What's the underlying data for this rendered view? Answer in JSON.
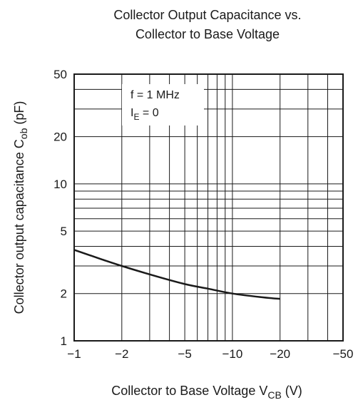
{
  "chart_data": {
    "type": "line",
    "title_lines": [
      "Collector Output Capacitance vs.",
      "Collector to Base Voltage"
    ],
    "xlabel": {
      "main": "Collector to Base Voltage  V",
      "sub": "CB",
      "unit": "  (V)"
    },
    "ylabel": {
      "main": "Collector output capacitance  C",
      "sub": "ob",
      "unit": "  (pF)"
    },
    "x_scale": "log",
    "y_scale": "log",
    "xlim": [
      -1,
      -50
    ],
    "ylim": [
      1,
      50
    ],
    "x_ticks": [
      -1,
      -2,
      -5,
      -10,
      -20,
      -50
    ],
    "x_tick_labels": [
      "−1",
      "−2",
      "−5",
      "−10",
      "−20",
      "−50"
    ],
    "y_ticks": [
      1,
      2,
      5,
      10,
      20,
      50
    ],
    "y_tick_labels": [
      "1",
      "2",
      "5",
      "10",
      "20",
      "50"
    ],
    "grid": true,
    "annotation": {
      "line1": "f = 1 MHz",
      "line2_main": "I",
      "line2_sub": "E",
      "line2_rest": " = 0"
    },
    "series": [
      {
        "x": [
          -1,
          -1.5,
          -2,
          -3,
          -5,
          -7,
          -10,
          -15,
          -20
        ],
        "y": [
          3.8,
          3.3,
          3.0,
          2.65,
          2.3,
          2.15,
          2.0,
          1.9,
          1.85
        ]
      }
    ]
  }
}
